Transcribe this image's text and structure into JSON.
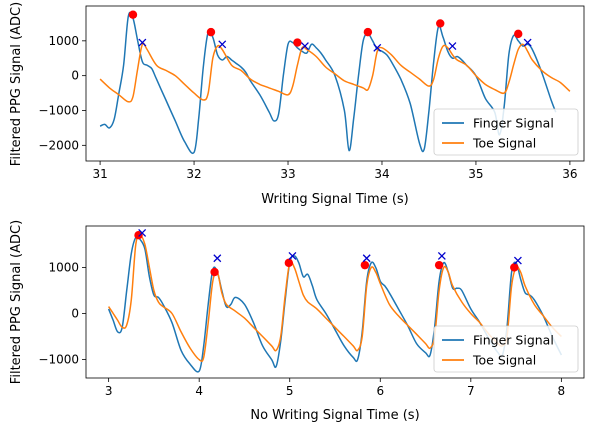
{
  "chart_data": [
    {
      "type": "line",
      "xlabel": "Writing Signal Time (s)",
      "ylabel": "Filtered PPG Signal (ADC)",
      "xlim": [
        30.85,
        36.15
      ],
      "ylim": [
        -2450,
        2000
      ],
      "xticks": [
        31,
        32,
        33,
        34,
        35,
        36
      ],
      "yticks": [
        -2000,
        -1000,
        0,
        1000
      ],
      "legend": "lower-right",
      "series": [
        {
          "name": "Finger Signal",
          "color": "#1f77b4",
          "x": [
            31.0,
            31.05,
            31.1,
            31.15,
            31.2,
            31.25,
            31.3,
            31.35,
            31.4,
            31.45,
            31.5,
            31.55,
            31.6,
            31.7,
            31.8,
            31.9,
            32.0,
            32.05,
            32.1,
            32.15,
            32.2,
            32.25,
            32.3,
            32.35,
            32.4,
            32.45,
            32.5,
            32.55,
            32.6,
            32.7,
            32.8,
            32.85,
            32.9,
            32.95,
            33.0,
            33.05,
            33.1,
            33.15,
            33.2,
            33.25,
            33.3,
            33.35,
            33.4,
            33.5,
            33.6,
            33.65,
            33.7,
            33.75,
            33.8,
            33.85,
            33.9,
            33.95,
            34.0,
            34.05,
            34.1,
            34.2,
            34.3,
            34.4,
            34.45,
            34.5,
            34.55,
            34.6,
            34.65,
            34.7,
            34.75,
            34.8,
            34.85,
            34.9,
            35.0,
            35.1,
            35.2,
            35.25,
            35.3,
            35.35,
            35.4,
            35.45,
            35.5,
            35.55,
            35.6,
            35.7,
            35.8,
            35.85
          ],
          "y": [
            -1450,
            -1400,
            -1500,
            -1250,
            -500,
            300,
            1700,
            1650,
            1000,
            400,
            300,
            200,
            -100,
            -700,
            -1300,
            -1900,
            -2200,
            -1200,
            300,
            1250,
            1100,
            600,
            450,
            550,
            450,
            350,
            250,
            100,
            -150,
            -550,
            -1050,
            -1300,
            -1100,
            0,
            900,
            950,
            800,
            700,
            650,
            900,
            800,
            650,
            450,
            0,
            -1000,
            -2150,
            -1200,
            0,
            1000,
            1200,
            1000,
            750,
            700,
            600,
            400,
            -100,
            -800,
            -1950,
            -2100,
            -1000,
            400,
            1400,
            1100,
            700,
            500,
            550,
            450,
            300,
            0,
            -650,
            -1050,
            -1700,
            -900,
            600,
            1150,
            1000,
            850,
            900,
            750,
            100,
            -700,
            -1050
          ]
        },
        {
          "name": "Toe Signal",
          "color": "#ff7f0e",
          "x": [
            31.0,
            31.1,
            31.2,
            31.3,
            31.35,
            31.4,
            31.45,
            31.5,
            31.6,
            31.7,
            31.8,
            31.9,
            32.0,
            32.1,
            32.15,
            32.2,
            32.25,
            32.3,
            32.4,
            32.5,
            32.6,
            32.7,
            32.8,
            32.9,
            33.0,
            33.05,
            33.1,
            33.15,
            33.2,
            33.3,
            33.4,
            33.5,
            33.6,
            33.7,
            33.8,
            33.85,
            33.9,
            33.95,
            34.0,
            34.1,
            34.2,
            34.3,
            34.4,
            34.5,
            34.55,
            34.6,
            34.65,
            34.7,
            34.75,
            34.8,
            34.9,
            35.0,
            35.1,
            35.2,
            35.3,
            35.35,
            35.4,
            35.45,
            35.5,
            35.55,
            35.6,
            35.7,
            35.8,
            35.9,
            36.0
          ],
          "y": [
            -100,
            -350,
            -550,
            -750,
            -600,
            200,
            900,
            750,
            300,
            150,
            0,
            -250,
            -500,
            -700,
            -500,
            500,
            850,
            750,
            300,
            150,
            -100,
            -250,
            -350,
            -450,
            -550,
            -300,
            300,
            800,
            750,
            550,
            250,
            50,
            -150,
            -250,
            -350,
            -400,
            0,
            700,
            800,
            600,
            300,
            100,
            -100,
            -300,
            -100,
            500,
            850,
            800,
            600,
            450,
            300,
            0,
            -250,
            -400,
            -500,
            -200,
            300,
            750,
            900,
            700,
            450,
            150,
            -50,
            -200,
            -450
          ]
        }
      ],
      "markers": [
        {
          "name": "peaks",
          "color": "#ff0000",
          "shape": "circle",
          "x": [
            31.35,
            32.18,
            33.1,
            33.85,
            34.62,
            35.45
          ],
          "y": [
            1750,
            1250,
            950,
            1250,
            1500,
            1200
          ]
        },
        {
          "name": "peaks",
          "color": "#0000cc",
          "shape": "x",
          "x": [
            31.45,
            32.3,
            33.18,
            33.95,
            34.75,
            35.55
          ],
          "y": [
            950,
            900,
            850,
            800,
            850,
            950
          ]
        }
      ]
    },
    {
      "type": "line",
      "xlabel": "No Writing Signal Time (s)",
      "ylabel": "Filtered PPG Signal (ADC)",
      "xlim": [
        2.75,
        8.25
      ],
      "ylim": [
        -1400,
        1900
      ],
      "xticks": [
        3,
        4,
        5,
        6,
        7,
        8
      ],
      "yticks": [
        -1000,
        0,
        1000
      ],
      "legend": "lower-right",
      "series": [
        {
          "name": "Finger Signal",
          "color": "#1f77b4",
          "x": [
            3.0,
            3.05,
            3.1,
            3.15,
            3.2,
            3.25,
            3.3,
            3.35,
            3.4,
            3.45,
            3.5,
            3.55,
            3.6,
            3.7,
            3.8,
            3.9,
            4.0,
            4.05,
            4.1,
            4.15,
            4.2,
            4.25,
            4.3,
            4.35,
            4.4,
            4.5,
            4.6,
            4.7,
            4.8,
            4.85,
            4.9,
            4.95,
            5.0,
            5.05,
            5.1,
            5.15,
            5.2,
            5.25,
            5.3,
            5.4,
            5.5,
            5.6,
            5.7,
            5.75,
            5.8,
            5.85,
            5.9,
            5.95,
            6.0,
            6.05,
            6.1,
            6.2,
            6.3,
            6.4,
            6.5,
            6.55,
            6.6,
            6.65,
            6.7,
            6.75,
            6.8,
            6.85,
            6.9,
            7.0,
            7.1,
            7.2,
            7.3,
            7.35,
            7.4,
            7.45,
            7.5,
            7.55,
            7.6,
            7.65,
            7.7,
            7.8,
            7.9,
            8.0
          ],
          "y": [
            100,
            -150,
            -400,
            -300,
            500,
            1300,
            1650,
            1600,
            1400,
            800,
            400,
            350,
            200,
            -200,
            -800,
            -1100,
            -1250,
            -700,
            200,
            950,
            900,
            500,
            150,
            200,
            350,
            200,
            -200,
            -700,
            -1000,
            -1150,
            -600,
            300,
            1100,
            1250,
            1100,
            800,
            850,
            600,
            300,
            0,
            -350,
            -700,
            -950,
            -1000,
            -400,
            700,
            1100,
            1000,
            700,
            600,
            450,
            100,
            -250,
            -650,
            -850,
            -900,
            -300,
            700,
            1100,
            900,
            550,
            550,
            500,
            100,
            -200,
            -550,
            -850,
            -900,
            -300,
            900,
            1100,
            750,
            450,
            400,
            300,
            -50,
            -500,
            -900
          ]
        },
        {
          "name": "Toe Signal",
          "color": "#ff7f0e",
          "x": [
            3.0,
            3.05,
            3.1,
            3.15,
            3.2,
            3.25,
            3.3,
            3.35,
            3.4,
            3.45,
            3.5,
            3.55,
            3.6,
            3.7,
            3.8,
            3.9,
            4.0,
            4.05,
            4.1,
            4.15,
            4.2,
            4.25,
            4.3,
            4.4,
            4.5,
            4.6,
            4.7,
            4.8,
            4.85,
            4.9,
            4.95,
            5.0,
            5.05,
            5.1,
            5.15,
            5.2,
            5.3,
            5.4,
            5.5,
            5.6,
            5.7,
            5.75,
            5.8,
            5.85,
            5.9,
            5.95,
            6.0,
            6.1,
            6.2,
            6.3,
            6.4,
            6.5,
            6.55,
            6.6,
            6.65,
            6.7,
            6.75,
            6.8,
            6.9,
            7.0,
            7.1,
            7.2,
            7.3,
            7.35,
            7.4,
            7.45,
            7.5,
            7.55,
            7.6,
            7.7,
            7.8,
            7.9,
            8.0
          ],
          "y": [
            150,
            0,
            -150,
            -300,
            -250,
            300,
            1500,
            1700,
            1500,
            1000,
            500,
            250,
            150,
            0,
            -400,
            -750,
            -1000,
            -950,
            -200,
            700,
            900,
            450,
            200,
            50,
            -100,
            -300,
            -500,
            -700,
            -800,
            -500,
            400,
            1100,
            1000,
            700,
            400,
            250,
            100,
            -100,
            -300,
            -500,
            -700,
            -800,
            -500,
            600,
            1000,
            900,
            650,
            200,
            -50,
            -250,
            -450,
            -650,
            -750,
            -500,
            500,
            1000,
            900,
            600,
            250,
            0,
            -200,
            -450,
            -650,
            -700,
            -500,
            600,
            1000,
            900,
            600,
            200,
            -50,
            -300,
            -500
          ]
        }
      ],
      "markers": [
        {
          "name": "peaks",
          "color": "#ff0000",
          "shape": "circle",
          "x": [
            3.33,
            4.17,
            4.99,
            5.83,
            6.65,
            7.48
          ],
          "y": [
            1700,
            900,
            1100,
            1050,
            1050,
            1000
          ]
        },
        {
          "name": "peaks",
          "color": "#0000cc",
          "shape": "x",
          "x": [
            3.37,
            4.2,
            5.03,
            5.85,
            6.68,
            7.52
          ],
          "y": [
            1750,
            1200,
            1250,
            1200,
            1250,
            1150
          ]
        }
      ]
    }
  ]
}
